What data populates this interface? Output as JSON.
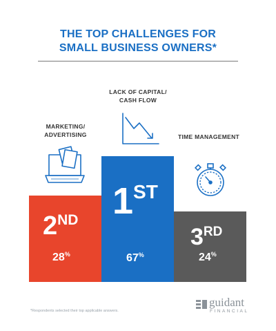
{
  "title": {
    "line1": "THE TOP CHALLENGES FOR",
    "line2": "SMALL BUSINESS OWNERS*"
  },
  "colors": {
    "title": "#1a6fc4",
    "first": "#1a6fc4",
    "second": "#e8452c",
    "third": "#5a5a5a",
    "icon": "#1a6fc4"
  },
  "podium": [
    {
      "label_line1": "LACK OF CAPITAL/",
      "label_line2": "CASH FLOW",
      "rank_num": "1",
      "rank_suffix": "ST",
      "percent_num": "67",
      "percent_sign": "%",
      "icon": "chart-down-icon"
    },
    {
      "label_line1": "MARKETING/",
      "label_line2": "ADVERTISING",
      "rank_num": "2",
      "rank_suffix": "ND",
      "percent_num": "28",
      "percent_sign": "%",
      "icon": "laptop-icon"
    },
    {
      "label_line1": "TIME MANAGEMENT",
      "rank_num": "3",
      "rank_suffix": "RD",
      "percent_num": "24",
      "percent_sign": "%",
      "icon": "stopwatch-icon"
    }
  ],
  "footnote": "*Respondents selected their top applicable answers.",
  "logo": {
    "name": "guidant",
    "sub": "FINANCIAL",
    "icon": "guidant-logo-icon"
  }
}
